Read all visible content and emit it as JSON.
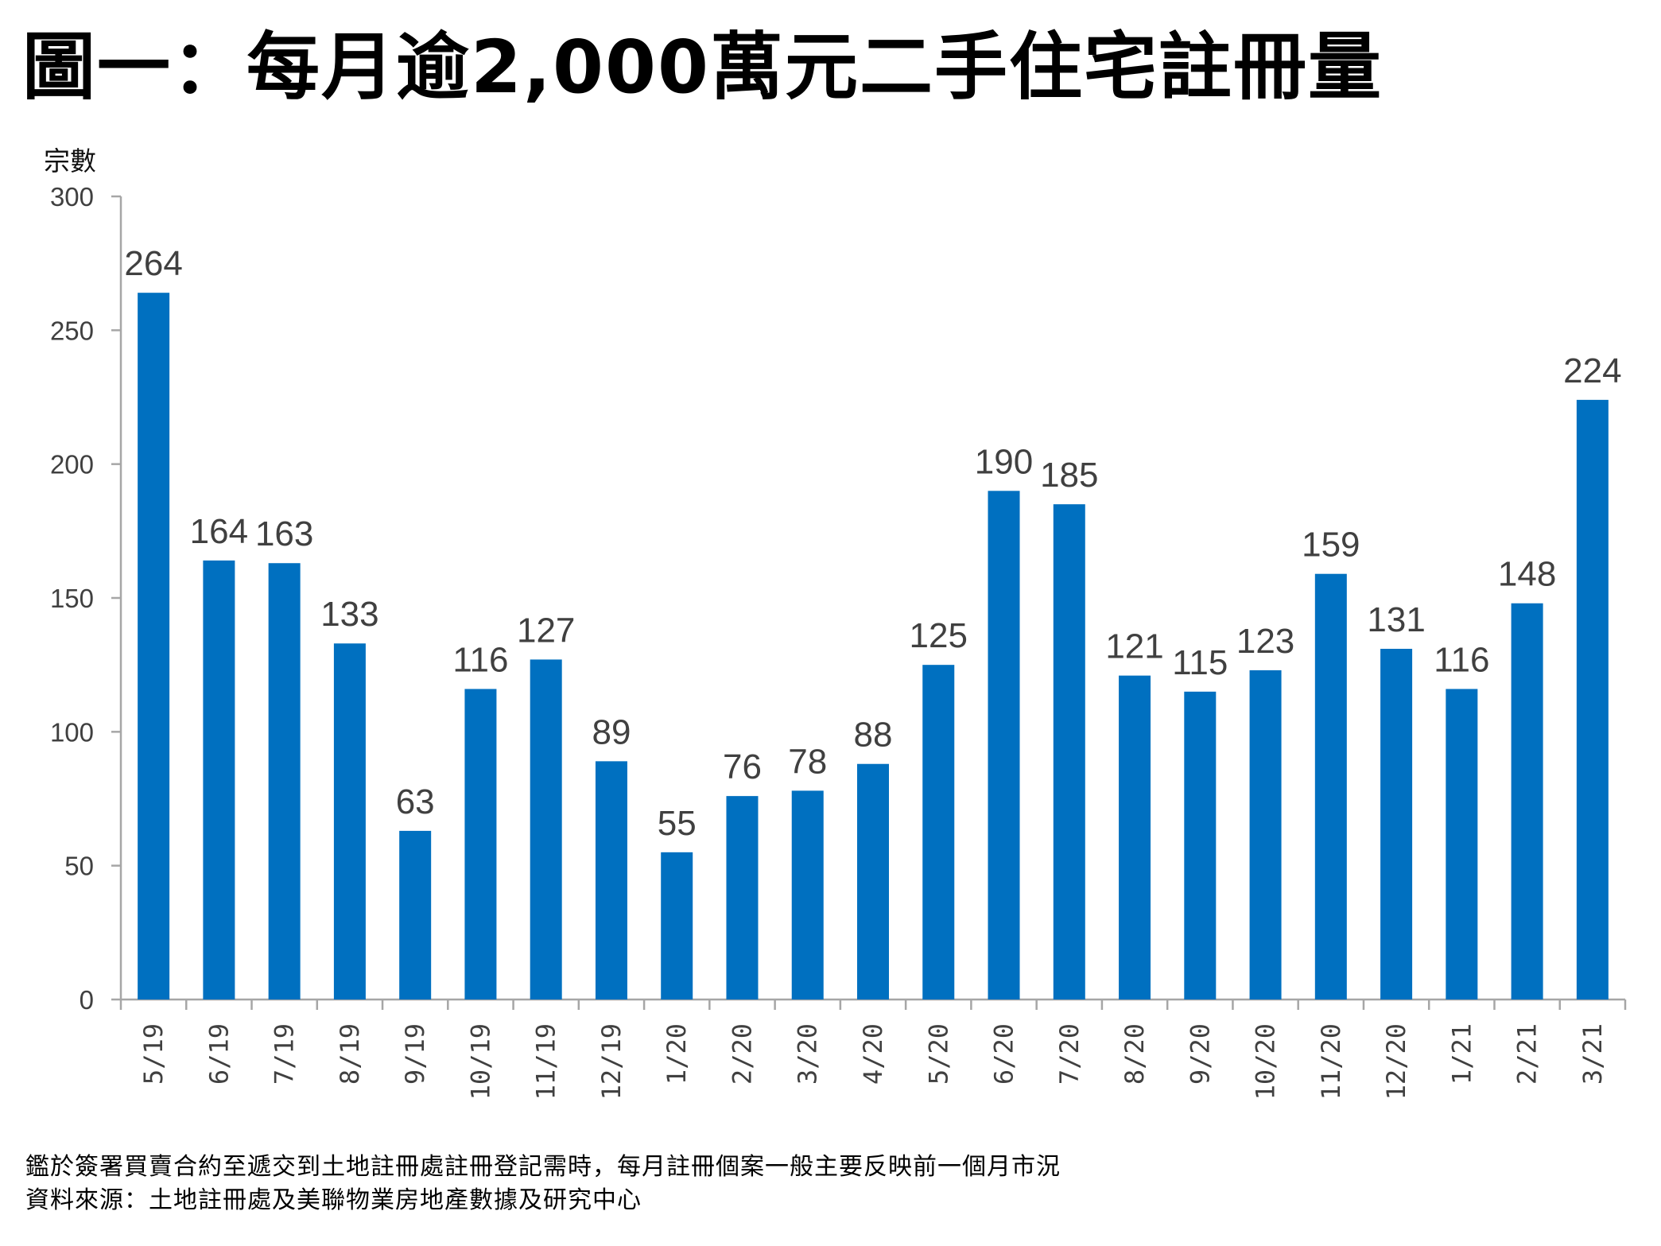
{
  "title": "圖一：每月逾2,000萬元二手住宅註冊量",
  "footnotes": {
    "note": "鑑於簽署買賣合約至遞交到土地註冊處註冊登記需時，每月註冊個案一般主要反映前一個月市況",
    "source": "資料來源：土地註冊處及美聯物業房地產數據及研究中心"
  },
  "colors": {
    "bar": "#0070C0",
    "axis": "#A6A6A6",
    "label": "#404040"
  },
  "chart_data": {
    "type": "bar",
    "title": "圖一：每月逾2,000萬元二手住宅註冊量",
    "xlabel": "",
    "ylabel": "宗數",
    "ylim": [
      0,
      300
    ],
    "yticks": [
      0,
      50,
      100,
      150,
      200,
      250,
      300
    ],
    "grid": false,
    "legend": "none",
    "categories": [
      "5/19",
      "6/19",
      "7/19",
      "8/19",
      "9/19",
      "10/19",
      "11/19",
      "12/19",
      "1/20",
      "2/20",
      "3/20",
      "4/20",
      "5/20",
      "6/20",
      "7/20",
      "8/20",
      "9/20",
      "10/20",
      "11/20",
      "12/20",
      "1/21",
      "2/21",
      "3/21"
    ],
    "values": [
      264,
      164,
      163,
      133,
      63,
      116,
      127,
      89,
      55,
      76,
      78,
      88,
      125,
      190,
      185,
      121,
      115,
      123,
      159,
      131,
      116,
      148,
      224
    ]
  }
}
